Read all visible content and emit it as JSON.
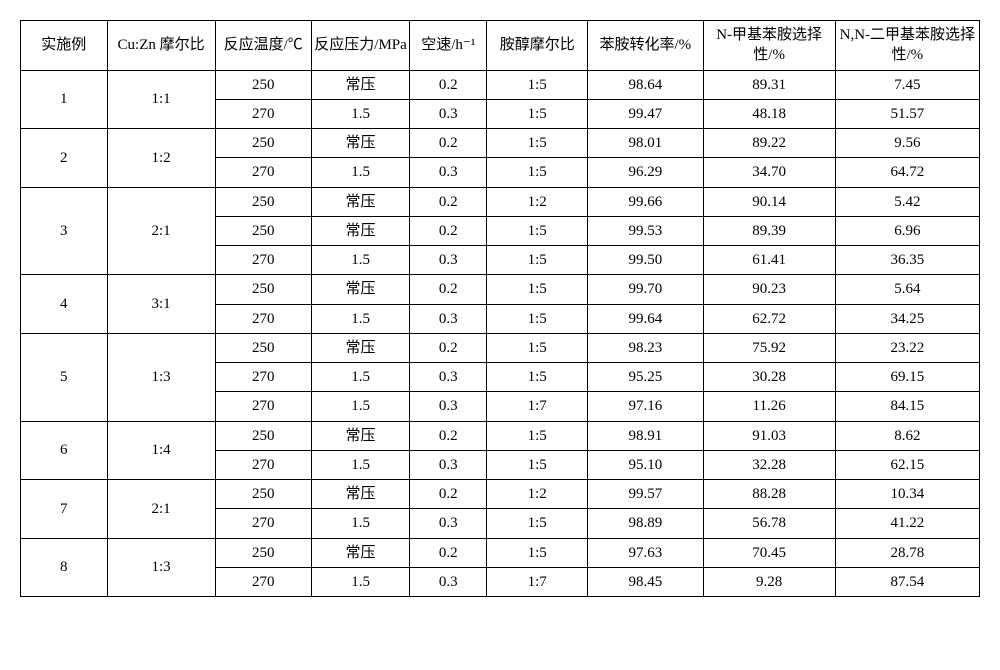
{
  "table": {
    "headers": [
      "实施例",
      "Cu:Zn 摩尔比",
      "反应温度/℃",
      "反应压力/MPa",
      "空速/h⁻¹",
      "胺醇摩尔比",
      "苯胺转化率/%",
      "N-甲基苯胺选择性/%",
      "N,N-二甲基苯胺选择性/%"
    ],
    "groups": [
      {
        "id": "1",
        "ratio": "1:1",
        "rows": [
          {
            "temp": "250",
            "press": "常压",
            "sv": "0.2",
            "aor": "1:5",
            "conv": "98.64",
            "sel1": "89.31",
            "sel2": "7.45"
          },
          {
            "temp": "270",
            "press": "1.5",
            "sv": "0.3",
            "aor": "1:5",
            "conv": "99.47",
            "sel1": "48.18",
            "sel2": "51.57"
          }
        ]
      },
      {
        "id": "2",
        "ratio": "1:2",
        "rows": [
          {
            "temp": "250",
            "press": "常压",
            "sv": "0.2",
            "aor": "1:5",
            "conv": "98.01",
            "sel1": "89.22",
            "sel2": "9.56"
          },
          {
            "temp": "270",
            "press": "1.5",
            "sv": "0.3",
            "aor": "1:5",
            "conv": "96.29",
            "sel1": "34.70",
            "sel2": "64.72"
          }
        ]
      },
      {
        "id": "3",
        "ratio": "2:1",
        "rows": [
          {
            "temp": "250",
            "press": "常压",
            "sv": "0.2",
            "aor": "1:2",
            "conv": "99.66",
            "sel1": "90.14",
            "sel2": "5.42"
          },
          {
            "temp": "250",
            "press": "常压",
            "sv": "0.2",
            "aor": "1:5",
            "conv": "99.53",
            "sel1": "89.39",
            "sel2": "6.96"
          },
          {
            "temp": "270",
            "press": "1.5",
            "sv": "0.3",
            "aor": "1:5",
            "conv": "99.50",
            "sel1": "61.41",
            "sel2": "36.35"
          }
        ]
      },
      {
        "id": "4",
        "ratio": "3:1",
        "rows": [
          {
            "temp": "250",
            "press": "常压",
            "sv": "0.2",
            "aor": "1:5",
            "conv": "99.70",
            "sel1": "90.23",
            "sel2": "5.64"
          },
          {
            "temp": "270",
            "press": "1.5",
            "sv": "0.3",
            "aor": "1:5",
            "conv": "99.64",
            "sel1": "62.72",
            "sel2": "34.25"
          }
        ]
      },
      {
        "id": "5",
        "ratio": "1:3",
        "rows": [
          {
            "temp": "250",
            "press": "常压",
            "sv": "0.2",
            "aor": "1:5",
            "conv": "98.23",
            "sel1": "75.92",
            "sel2": "23.22"
          },
          {
            "temp": "270",
            "press": "1.5",
            "sv": "0.3",
            "aor": "1:5",
            "conv": "95.25",
            "sel1": "30.28",
            "sel2": "69.15"
          },
          {
            "temp": "270",
            "press": "1.5",
            "sv": "0.3",
            "aor": "1:7",
            "conv": "97.16",
            "sel1": "11.26",
            "sel2": "84.15"
          }
        ]
      },
      {
        "id": "6",
        "ratio": "1:4",
        "rows": [
          {
            "temp": "250",
            "press": "常压",
            "sv": "0.2",
            "aor": "1:5",
            "conv": "98.91",
            "sel1": "91.03",
            "sel2": "8.62"
          },
          {
            "temp": "270",
            "press": "1.5",
            "sv": "0.3",
            "aor": "1:5",
            "conv": "95.10",
            "sel1": "32.28",
            "sel2": "62.15"
          }
        ]
      },
      {
        "id": "7",
        "ratio": "2:1",
        "rows": [
          {
            "temp": "250",
            "press": "常压",
            "sv": "0.2",
            "aor": "1:2",
            "conv": "99.57",
            "sel1": "88.28",
            "sel2": "10.34"
          },
          {
            "temp": "270",
            "press": "1.5",
            "sv": "0.3",
            "aor": "1:5",
            "conv": "98.89",
            "sel1": "56.78",
            "sel2": "41.22"
          }
        ]
      },
      {
        "id": "8",
        "ratio": "1:3",
        "rows": [
          {
            "temp": "250",
            "press": "常压",
            "sv": "0.2",
            "aor": "1:5",
            "conv": "97.63",
            "sel1": "70.45",
            "sel2": "28.78"
          },
          {
            "temp": "270",
            "press": "1.5",
            "sv": "0.3",
            "aor": "1:7",
            "conv": "98.45",
            "sel1": "9.28",
            "sel2": "87.54"
          }
        ]
      }
    ]
  }
}
